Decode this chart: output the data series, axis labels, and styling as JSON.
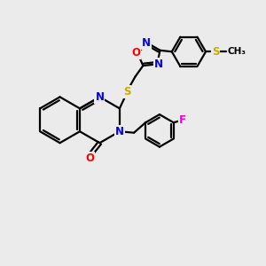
{
  "bg_color": "#ebebeb",
  "atom_colors": {
    "N": "#0000ff",
    "O": "#ff0000",
    "S": "#ccaa00",
    "F": "#ff00cc"
  },
  "bond_color": "#000000",
  "bond_width": 1.6,
  "font_size_atom": 8.5,
  "fig_width": 3.0,
  "fig_height": 3.0
}
